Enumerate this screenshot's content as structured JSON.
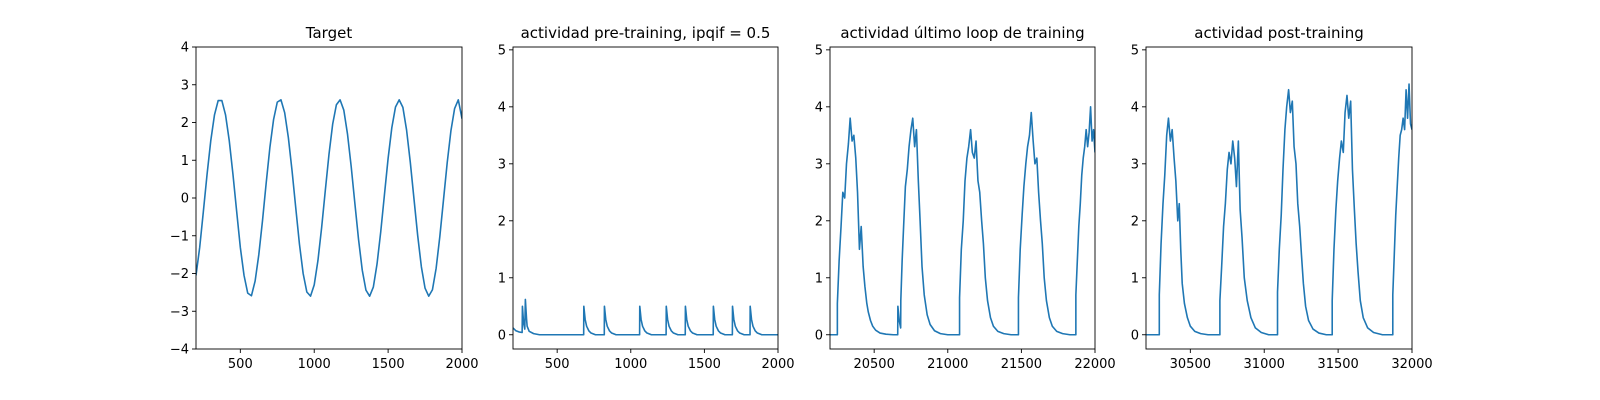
{
  "chart_data": [
    {
      "type": "line",
      "title": "Target",
      "xlabel": "",
      "ylabel": "",
      "xlim": [
        200,
        2000
      ],
      "ylim": [
        -4,
        4
      ],
      "xticks": [
        500,
        1000,
        1500,
        2000
      ],
      "yticks": [
        -4,
        -3,
        -2,
        -1,
        0,
        1,
        2,
        3,
        4
      ],
      "yticklabels": [
        "−4",
        "−3",
        "−2",
        "−1",
        "0",
        "1",
        "2",
        "3",
        "4"
      ],
      "series": [
        {
          "color": "#1f77b4",
          "x": [
            200,
            225,
            250,
            275,
            300,
            325,
            350,
            375,
            400,
            425,
            450,
            475,
            500,
            525,
            550,
            575,
            600,
            625,
            650,
            675,
            700,
            725,
            750,
            775,
            800,
            825,
            850,
            875,
            900,
            925,
            950,
            975,
            1000,
            1025,
            1050,
            1075,
            1100,
            1125,
            1150,
            1175,
            1200,
            1225,
            1250,
            1275,
            1300,
            1325,
            1350,
            1375,
            1400,
            1425,
            1450,
            1475,
            1500,
            1525,
            1550,
            1575,
            1600,
            1625,
            1650,
            1675,
            1700,
            1725,
            1750,
            1775,
            1800,
            1825,
            1850,
            1875,
            1900,
            1925,
            1950,
            1975,
            2000
          ],
          "y": [
            -2.05,
            -1.31,
            -0.35,
            0.63,
            1.52,
            2.2,
            2.58,
            2.58,
            2.2,
            1.52,
            0.63,
            -0.35,
            -1.31,
            -2.05,
            -2.52,
            -2.59,
            -2.2,
            -1.5,
            -0.6,
            0.4,
            1.34,
            2.08,
            2.54,
            2.6,
            2.26,
            1.6,
            0.72,
            -0.26,
            -1.22,
            -2.0,
            -2.49,
            -2.6,
            -2.3,
            -1.66,
            -0.79,
            0.2,
            1.16,
            1.96,
            2.47,
            2.6,
            2.33,
            1.7,
            0.84,
            -0.14,
            -1.1,
            -1.91,
            -2.44,
            -2.6,
            -2.36,
            -1.75,
            -0.9,
            0.08,
            1.05,
            1.86,
            2.41,
            2.6,
            2.4,
            1.8,
            0.95,
            -0.02,
            -0.99,
            -1.82,
            -2.39,
            -2.6,
            -2.43,
            -1.86,
            -1.02,
            -0.04,
            0.94,
            1.78,
            2.37,
            2.6,
            2.1
          ]
        }
      ]
    },
    {
      "type": "line",
      "title": "actividad pre-training, ipqif = 0.5",
      "xlabel": "",
      "ylabel": "",
      "xlim": [
        200,
        2000
      ],
      "ylim": [
        -0.25,
        5.05
      ],
      "xticks": [
        500,
        1000,
        1500,
        2000
      ],
      "yticks": [
        0,
        1,
        2,
        3,
        4,
        5
      ],
      "yticklabels": [
        "0",
        "1",
        "2",
        "3",
        "4",
        "5"
      ],
      "series": [
        {
          "color": "#1f77b4",
          "x": [
            200,
            220,
            240,
            262,
            264,
            272,
            280,
            284,
            292,
            296,
            310,
            340,
            380,
            680,
            681,
            690,
            700,
            715,
            730,
            760,
            820,
            821,
            830,
            840,
            855,
            870,
            900,
            1060,
            1061,
            1070,
            1080,
            1095,
            1110,
            1140,
            1240,
            1241,
            1250,
            1260,
            1275,
            1290,
            1320,
            1370,
            1371,
            1380,
            1390,
            1405,
            1420,
            1450,
            1560,
            1561,
            1570,
            1580,
            1595,
            1610,
            1640,
            1690,
            1691,
            1700,
            1710,
            1725,
            1740,
            1770,
            1810,
            1811,
            1820,
            1830,
            1845,
            1860,
            1890,
            2000
          ],
          "y": [
            0.12,
            0.07,
            0.05,
            0.04,
            0.5,
            0.2,
            0.1,
            0.62,
            0.28,
            0.15,
            0.06,
            0.02,
            0.0,
            0.0,
            0.5,
            0.27,
            0.15,
            0.07,
            0.03,
            0.0,
            0.0,
            0.5,
            0.27,
            0.15,
            0.07,
            0.03,
            0.0,
            0.0,
            0.5,
            0.27,
            0.15,
            0.07,
            0.03,
            0.0,
            0.0,
            0.5,
            0.27,
            0.15,
            0.07,
            0.03,
            0.0,
            0.0,
            0.5,
            0.27,
            0.15,
            0.07,
            0.03,
            0.0,
            0.0,
            0.5,
            0.27,
            0.15,
            0.07,
            0.03,
            0.0,
            0.0,
            0.5,
            0.27,
            0.15,
            0.07,
            0.03,
            0.0,
            0.0,
            0.5,
            0.27,
            0.15,
            0.07,
            0.03,
            0.0,
            0.0
          ]
        }
      ]
    },
    {
      "type": "line",
      "title": "actividad último loop de training",
      "xlabel": "",
      "ylabel": "",
      "xlim": [
        20200,
        22000
      ],
      "ylim": [
        -0.25,
        5.05
      ],
      "xticks": [
        20500,
        21000,
        21500,
        22000
      ],
      "yticks": [
        0,
        1,
        2,
        3,
        4,
        5
      ],
      "yticklabels": [
        "0",
        "1",
        "2",
        "3",
        "4",
        "5"
      ],
      "series": [
        {
          "color": "#1f77b4",
          "x": [
            20200,
            20250,
            20250,
            20262,
            20275,
            20287,
            20300,
            20312,
            20325,
            20337,
            20350,
            20362,
            20375,
            20387,
            20400,
            20412,
            20425,
            20437,
            20450,
            20460,
            20475,
            20490,
            20510,
            20540,
            20580,
            20630,
            20660,
            20661,
            20670,
            20680,
            20681,
            20690,
            20700,
            20712,
            20725,
            20737,
            20750,
            20762,
            20775,
            20787,
            20800,
            20812,
            20825,
            20840,
            20860,
            20880,
            20910,
            20950,
            21000,
            21080,
            21080,
            21092,
            21105,
            21117,
            21130,
            21142,
            21155,
            21167,
            21180,
            21192,
            21205,
            21217,
            21230,
            21242,
            21255,
            21270,
            21290,
            21310,
            21340,
            21380,
            21430,
            21480,
            21480,
            21492,
            21505,
            21517,
            21530,
            21542,
            21555,
            21567,
            21580,
            21592,
            21605,
            21617,
            21630,
            21642,
            21655,
            21670,
            21690,
            21710,
            21740,
            21780,
            21830,
            21870,
            21870,
            21880,
            21890,
            21900,
            21910,
            21920,
            21930,
            21940,
            21950,
            21960,
            21970,
            21980,
            21990,
            22000
          ],
          "y": [
            0.0,
            0.0,
            0.55,
            1.3,
            1.9,
            2.5,
            2.4,
            3.0,
            3.35,
            3.8,
            3.4,
            3.5,
            3.1,
            2.5,
            1.5,
            1.9,
            1.2,
            0.85,
            0.55,
            0.4,
            0.25,
            0.15,
            0.08,
            0.03,
            0.01,
            0.0,
            0.0,
            0.5,
            0.25,
            0.12,
            0.6,
            1.3,
            1.9,
            2.6,
            2.9,
            3.3,
            3.6,
            3.8,
            3.3,
            3.6,
            2.7,
            2.0,
            1.2,
            0.7,
            0.35,
            0.18,
            0.07,
            0.02,
            0.0,
            0.0,
            0.65,
            1.5,
            2.0,
            2.7,
            3.1,
            3.3,
            3.6,
            3.2,
            3.1,
            3.4,
            2.7,
            2.5,
            2.0,
            1.6,
            1.0,
            0.6,
            0.3,
            0.15,
            0.06,
            0.02,
            0.0,
            0.0,
            0.65,
            1.5,
            2.1,
            2.6,
            3.0,
            3.3,
            3.5,
            3.9,
            3.4,
            3.0,
            3.1,
            2.5,
            2.0,
            1.6,
            1.0,
            0.6,
            0.3,
            0.15,
            0.06,
            0.02,
            0.0,
            0.0,
            0.7,
            1.3,
            1.9,
            2.3,
            2.8,
            3.1,
            3.3,
            3.6,
            3.3,
            3.55,
            4.0,
            3.4,
            3.6,
            3.2
          ]
        }
      ]
    },
    {
      "type": "line",
      "title": "actividad post-training",
      "xlabel": "",
      "ylabel": "",
      "xlim": [
        30200,
        32000
      ],
      "ylim": [
        -0.25,
        5.05
      ],
      "xticks": [
        30500,
        31000,
        31500,
        32000
      ],
      "yticks": [
        0,
        1,
        2,
        3,
        4,
        5
      ],
      "yticklabels": [
        "0",
        "1",
        "2",
        "3",
        "4",
        "5"
      ],
      "series": [
        {
          "color": "#1f77b4",
          "x": [
            30200,
            30290,
            30290,
            30302,
            30315,
            30327,
            30340,
            30352,
            30365,
            30377,
            30390,
            30402,
            30415,
            30425,
            30435,
            30445,
            30460,
            30480,
            30500,
            30530,
            30570,
            30620,
            30700,
            30700,
            30712,
            30725,
            30737,
            30750,
            30762,
            30775,
            30787,
            30800,
            30812,
            30825,
            30837,
            30850,
            30865,
            30885,
            30910,
            30940,
            30980,
            31030,
            31090,
            31090,
            31102,
            31115,
            31127,
            31140,
            31152,
            31165,
            31177,
            31190,
            31202,
            31215,
            31227,
            31240,
            31252,
            31265,
            31280,
            31300,
            31330,
            31370,
            31420,
            31460,
            31460,
            31472,
            31485,
            31497,
            31510,
            31522,
            31535,
            31547,
            31560,
            31572,
            31585,
            31597,
            31610,
            31622,
            31635,
            31650,
            31670,
            31700,
            31740,
            31800,
            31870,
            31870,
            31880,
            31890,
            31900,
            31910,
            31920,
            31930,
            31940,
            31950,
            31960,
            31970,
            31980,
            31990,
            32000
          ],
          "y": [
            0.0,
            0.0,
            0.7,
            1.6,
            2.3,
            2.8,
            3.5,
            3.8,
            3.4,
            3.6,
            3.1,
            2.7,
            2.0,
            2.3,
            1.5,
            0.9,
            0.55,
            0.3,
            0.15,
            0.06,
            0.02,
            0.0,
            0.0,
            0.6,
            1.2,
            1.9,
            2.3,
            2.9,
            3.2,
            3.0,
            3.4,
            3.1,
            2.6,
            3.4,
            2.2,
            1.7,
            1.0,
            0.6,
            0.3,
            0.12,
            0.04,
            0.0,
            0.0,
            0.75,
            1.5,
            2.1,
            2.9,
            3.6,
            4.0,
            4.3,
            3.9,
            4.1,
            3.3,
            3.0,
            2.3,
            1.9,
            1.4,
            0.9,
            0.5,
            0.25,
            0.1,
            0.03,
            0.0,
            0.0,
            0.6,
            1.5,
            2.2,
            2.7,
            3.1,
            3.4,
            3.2,
            3.9,
            4.2,
            3.8,
            4.1,
            2.9,
            2.2,
            1.6,
            1.1,
            0.6,
            0.3,
            0.12,
            0.04,
            0.0,
            0.0,
            0.7,
            1.4,
            2.1,
            2.6,
            3.1,
            3.5,
            3.6,
            3.8,
            3.6,
            4.3,
            3.8,
            4.4,
            3.7,
            3.6
          ]
        }
      ]
    }
  ]
}
